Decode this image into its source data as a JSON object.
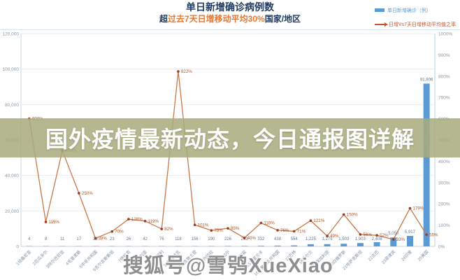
{
  "header": {
    "title": "单日新增确诊病例数",
    "subtitle_prefix": "超",
    "subtitle_highlight": "过去7天日增移动平均30%",
    "subtitle_suffix": "国家/地区"
  },
  "legend": {
    "bar_label": "单日新增确诊（例）",
    "line_label": "日增Vs7天日增移动平均值之率",
    "bar_color": "#5b9bd5",
    "line_color": "#c0572e"
  },
  "overlay_banner": {
    "text": "国外疫情最新动态，今日通报图详解"
  },
  "watermark": {
    "text": "搜狐号@雪鸮XueXiao"
  },
  "chart_data": {
    "type": "bar",
    "subtype": "combo-bar-line-dual-axis",
    "title": "单日新增确诊病例数",
    "subtitle": "超过去7天日增移动平均30%国家/地区",
    "legend_position": "top-right",
    "grid": true,
    "categories": [
      "1坦桑尼亚",
      "2厄瓜多尔",
      "3阿尔巴尼亚",
      "4毛里求斯",
      "5中非共和国",
      "6吉尔吉斯斯坦",
      "7伊拉克",
      "8澳大利亚",
      "9奥地利",
      "10科特迪瓦",
      "11列支敦士登",
      "12委内瑞拉",
      "13塞内加尔",
      "14伯利兹",
      "15斯里兰卡",
      "16刚果民主共和国",
      "17巴林",
      "18爱尔兰",
      "19保加利亚",
      "20白俄罗斯",
      "21哈萨克斯坦",
      "22古巴",
      "23菲律宾",
      "24印度",
      "25美国"
    ],
    "series": [
      {
        "name": "单日新增确诊（例）",
        "type": "bar",
        "axis": "left",
        "color": "#5b9bd5",
        "values": [
          4,
          8,
          11,
          17,
          22,
          23,
          26,
          42,
          76,
          118,
          156,
          190,
          226,
          241,
          332,
          438,
          554,
          1225,
          1279,
          1503,
          1903,
          2408,
          5050,
          5917,
          91806
        ]
      },
      {
        "name": "日增Vs7天日增移动平均值之率",
        "type": "line",
        "axis": "right",
        "color": "#c87747",
        "unit": "%",
        "values": [
          600,
          115,
          450,
          250,
          38,
          70,
          128,
          119,
          82,
          822,
          101,
          75,
          85,
          40,
          110,
          76,
          71,
          121,
          49,
          150,
          56,
          52,
          33,
          179,
          55
        ]
      }
    ],
    "left_axis": {
      "min": 0,
      "max": 120000,
      "tick_step": 20000,
      "labels": [
        "120,000",
        "100,000",
        "80,000",
        "60,000",
        "40,000",
        "20,000",
        "0"
      ]
    },
    "right_axis": {
      "min": 0,
      "max": 1000,
      "tick_step": 100,
      "unit": "%",
      "labels": [
        "1000%",
        "900%",
        "800%",
        "700%",
        "600%",
        "500%",
        "400%",
        "300%",
        "200%",
        "100%",
        "0%"
      ]
    }
  }
}
